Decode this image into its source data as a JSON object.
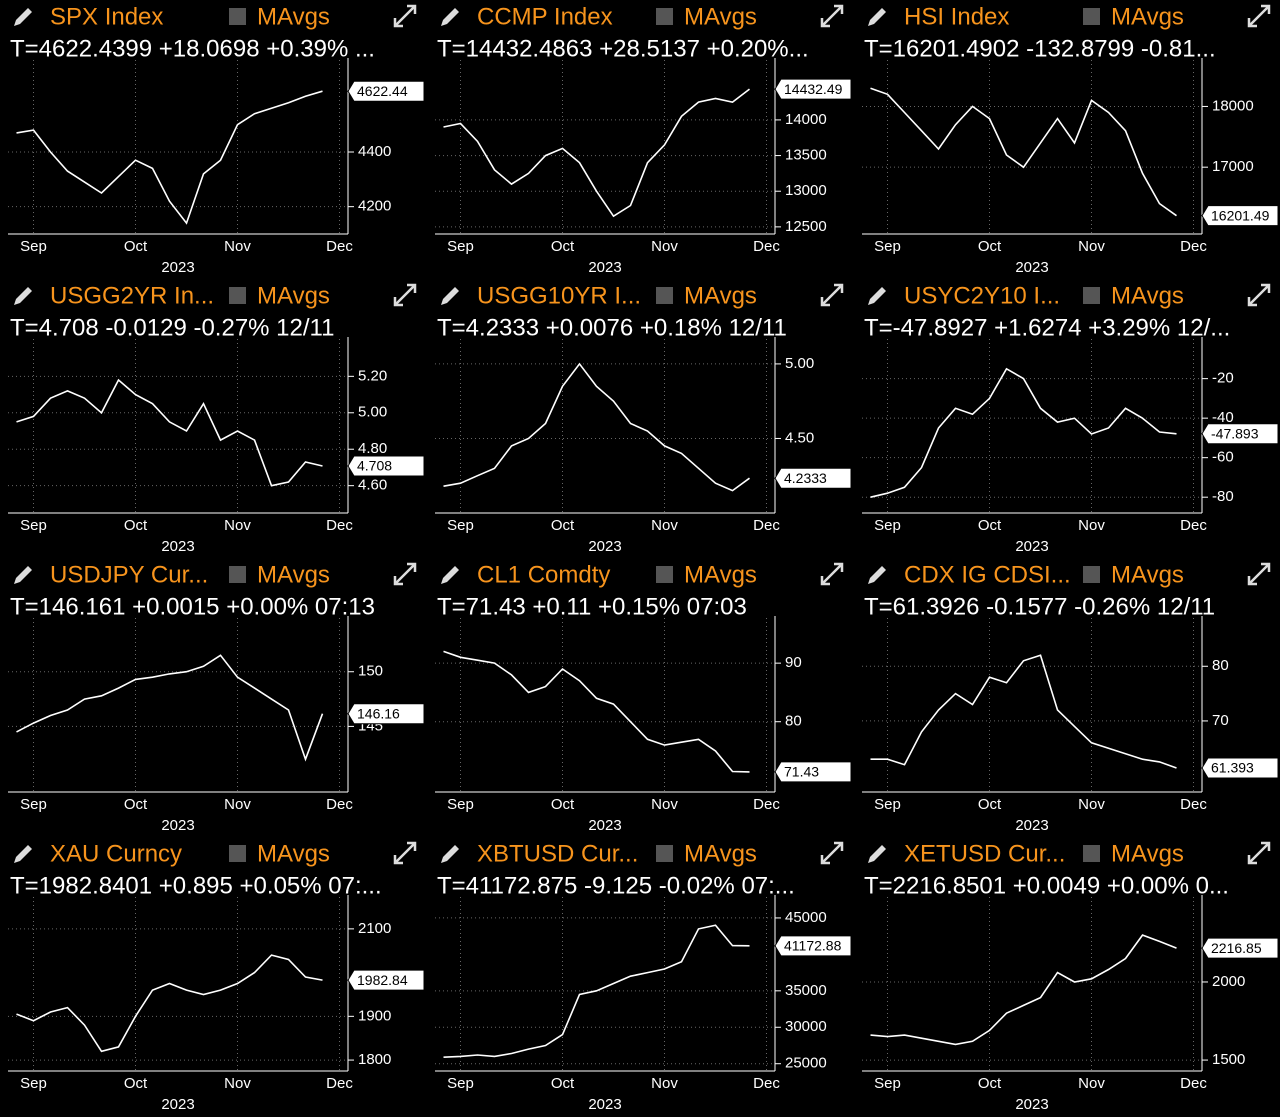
{
  "chart_data": [
    {
      "type": "line",
      "title": "SPX Index",
      "legend": "MAvgs",
      "quote": "T=4622.4399 +18.0698 +0.39% ...",
      "quote_color": "#3ee83e",
      "xlabel": "2023",
      "color": "#ffffff",
      "categories": [
        null,
        "Sep",
        null,
        null,
        null,
        null,
        null,
        "Oct",
        null,
        null,
        null,
        null,
        null,
        "Nov",
        null,
        null,
        null,
        null,
        null,
        "Dec"
      ],
      "values": [
        4470,
        4480,
        4400,
        4330,
        4290,
        4250,
        4310,
        4370,
        4340,
        4220,
        4140,
        4320,
        4370,
        4500,
        4540,
        4560,
        4580,
        4604,
        4622.4399,
        null
      ],
      "value_labels": [
        null,
        null,
        null,
        null,
        null,
        null,
        null,
        null,
        null,
        null,
        null,
        null,
        null,
        null,
        null,
        null,
        null,
        null,
        "4622.44",
        null
      ],
      "ylim": [
        4100,
        4700
      ],
      "yticks": [
        4200,
        4400
      ],
      "grid": true
    },
    {
      "type": "line",
      "title": "CCMP Index",
      "legend": "MAvgs",
      "quote": "T=14432.4863 +28.5137 +0.20%...",
      "quote_color": "#3ee83e",
      "xlabel": "2023",
      "color": "#ffffff",
      "categories": [
        null,
        "Sep",
        null,
        null,
        null,
        null,
        null,
        "Oct",
        null,
        null,
        null,
        null,
        null,
        "Nov",
        null,
        null,
        null,
        null,
        null,
        "Dec"
      ],
      "values": [
        13900,
        13950,
        13700,
        13300,
        13100,
        13250,
        13500,
        13600,
        13400,
        13000,
        12650,
        12800,
        13400,
        13650,
        14050,
        14250,
        14300,
        14250,
        14432.4863,
        null
      ],
      "value_labels": [
        null,
        null,
        null,
        null,
        null,
        null,
        null,
        null,
        null,
        null,
        null,
        null,
        null,
        null,
        null,
        null,
        null,
        null,
        "14432.49",
        null
      ],
      "ylim": [
        12400,
        14700
      ],
      "yticks": [
        12500,
        13000,
        13500,
        14000
      ],
      "grid": true
    },
    {
      "type": "line",
      "title": "HSI Index",
      "legend": "MAvgs",
      "quote": "T=16201.4902 -132.8799 -0.81...",
      "quote_color": "#ff3434",
      "xlabel": "2023",
      "color": "#ffffff",
      "categories": [
        null,
        "Sep",
        null,
        null,
        null,
        null,
        null,
        "Oct",
        null,
        null,
        null,
        null,
        null,
        "Nov",
        null,
        null,
        null,
        null,
        null,
        "Dec"
      ],
      "values": [
        18300,
        18200,
        17900,
        17600,
        17300,
        17700,
        18000,
        17800,
        17200,
        17000,
        17400,
        17800,
        17400,
        18100,
        17900,
        17600,
        16900,
        16400,
        16201.4902,
        null
      ],
      "value_labels": [
        null,
        null,
        null,
        null,
        null,
        null,
        null,
        null,
        null,
        null,
        null,
        null,
        null,
        null,
        null,
        null,
        null,
        null,
        "16201.49",
        null
      ],
      "ylim": [
        15900,
        18600
      ],
      "yticks": [
        17000,
        18000
      ],
      "grid": true
    },
    {
      "type": "line",
      "title": "USGG2YR In...",
      "legend": "MAvgs",
      "quote": "T=4.708 -0.0129 -0.27% 12/11",
      "quote_color": "#ff3434",
      "xlabel": "2023",
      "color": "#ffffff",
      "categories": [
        null,
        "Sep",
        null,
        null,
        null,
        null,
        null,
        "Oct",
        null,
        null,
        null,
        null,
        null,
        "Nov",
        null,
        null,
        null,
        null,
        null,
        "Dec"
      ],
      "values": [
        4.95,
        4.98,
        5.08,
        5.12,
        5.08,
        5.0,
        5.18,
        5.1,
        5.05,
        4.95,
        4.9,
        5.05,
        4.85,
        4.9,
        4.85,
        4.6,
        4.62,
        4.73,
        4.708,
        null
      ],
      "value_labels": [
        null,
        null,
        null,
        null,
        null,
        null,
        null,
        null,
        null,
        null,
        null,
        null,
        null,
        null,
        null,
        null,
        null,
        null,
        "4.708",
        null
      ],
      "ylim": [
        4.45,
        5.35
      ],
      "yticks": [
        {
          "value": 4.6,
          "label": "4.60"
        },
        {
          "value": 4.8,
          "label": "4.80"
        },
        {
          "value": 5,
          "label": "5.00"
        },
        {
          "value": 5.2,
          "label": "5.20"
        }
      ],
      "grid": true
    },
    {
      "type": "line",
      "title": "USGG10YR I...",
      "legend": "MAvgs",
      "quote": "T=4.2333 +0.0076 +0.18% 12/11",
      "quote_color": "#3ee83e",
      "xlabel": "2023",
      "color": "#ffffff",
      "categories": [
        null,
        "Sep",
        null,
        null,
        null,
        null,
        null,
        "Oct",
        null,
        null,
        null,
        null,
        null,
        "Nov",
        null,
        null,
        null,
        null,
        null,
        "Dec"
      ],
      "values": [
        4.18,
        4.2,
        4.25,
        4.3,
        4.45,
        4.5,
        4.6,
        4.85,
        5.0,
        4.85,
        4.75,
        4.6,
        4.55,
        4.45,
        4.4,
        4.3,
        4.2,
        4.15,
        4.2333,
        null
      ],
      "value_labels": [
        null,
        null,
        null,
        null,
        null,
        null,
        null,
        null,
        null,
        null,
        null,
        null,
        null,
        null,
        null,
        null,
        null,
        null,
        "4.2333",
        null
      ],
      "ylim": [
        4.0,
        5.1
      ],
      "yticks": [
        {
          "value": 4.5,
          "label": "4.50"
        },
        {
          "value": 5,
          "label": "5.00"
        }
      ],
      "grid": true
    },
    {
      "type": "line",
      "title": "USYC2Y10 I...",
      "legend": "MAvgs",
      "quote": "T=-47.8927 +1.6274 +3.29% 12/...",
      "quote_color": "#3ee83e",
      "xlabel": "2023",
      "color": "#ffffff",
      "categories": [
        null,
        "Sep",
        null,
        null,
        null,
        null,
        null,
        "Oct",
        null,
        null,
        null,
        null,
        null,
        "Nov",
        null,
        null,
        null,
        null,
        null,
        "Dec"
      ],
      "values": [
        -80,
        -78,
        -75,
        -65,
        -45,
        -35,
        -38,
        -30,
        -15,
        -20,
        -35,
        -42,
        -40,
        -48,
        -45,
        -35,
        -40,
        -47,
        -47.8927,
        null
      ],
      "value_labels": [
        null,
        null,
        null,
        null,
        null,
        null,
        null,
        null,
        null,
        null,
        null,
        null,
        null,
        null,
        null,
        null,
        null,
        null,
        "-47.893",
        null
      ],
      "ylim": [
        -88,
        -5
      ],
      "yticks": [
        -80,
        -60,
        -40,
        -20
      ],
      "grid": true
    },
    {
      "type": "line",
      "title": "USDJPY Cur...",
      "legend": "MAvgs",
      "quote": "T=146.161 +0.0015 +0.00% 07:13",
      "quote_color": "#3ee83e",
      "xlabel": "2023",
      "color": "#ffffff",
      "categories": [
        null,
        "Sep",
        null,
        null,
        null,
        null,
        null,
        "Oct",
        null,
        null,
        null,
        null,
        null,
        "Nov",
        null,
        null,
        null,
        null,
        null,
        "Dec"
      ],
      "values": [
        144.5,
        145.3,
        146,
        146.5,
        147.5,
        147.8,
        148.5,
        149.3,
        149.5,
        149.8,
        150,
        150.5,
        151.5,
        149.5,
        148.5,
        147.5,
        146.5,
        142,
        146.161,
        null
      ],
      "value_labels": [
        null,
        null,
        null,
        null,
        null,
        null,
        null,
        null,
        null,
        null,
        null,
        null,
        null,
        null,
        null,
        null,
        null,
        null,
        "146.16",
        null
      ],
      "ylim": [
        139,
        154
      ],
      "yticks": [
        145,
        150
      ],
      "grid": true
    },
    {
      "type": "line",
      "title": "CL1 Comdty",
      "legend": "MAvgs",
      "quote": "T=71.43 +0.11 +0.15% 07:03",
      "quote_color": "#3ee83e",
      "xlabel": "2023",
      "color": "#ffffff",
      "categories": [
        null,
        "Sep",
        null,
        null,
        null,
        null,
        null,
        "Oct",
        null,
        null,
        null,
        null,
        null,
        "Nov",
        null,
        null,
        null,
        null,
        null,
        "Dec"
      ],
      "values": [
        92,
        91,
        90.5,
        90,
        88,
        85,
        86,
        89,
        87,
        84,
        83,
        80,
        77,
        76,
        76.5,
        77,
        75,
        71.5,
        71.43,
        null
      ],
      "value_labels": [
        null,
        null,
        null,
        null,
        null,
        null,
        null,
        null,
        null,
        null,
        null,
        null,
        null,
        null,
        null,
        null,
        null,
        null,
        "71.43",
        null
      ],
      "ylim": [
        68,
        96
      ],
      "yticks": [
        80,
        90
      ],
      "grid": true
    },
    {
      "type": "line",
      "title": "CDX IG CDSI...",
      "legend": "MAvgs",
      "quote": "T=61.3926 -0.1577 -0.26% 12/11",
      "quote_color": "#3ee83e",
      "xlabel": "2023",
      "color": "#ffffff",
      "categories": [
        null,
        "Sep",
        null,
        null,
        null,
        null,
        null,
        "Oct",
        null,
        null,
        null,
        null,
        null,
        "Nov",
        null,
        null,
        null,
        null,
        null,
        "Dec"
      ],
      "values": [
        63,
        63,
        62,
        68,
        72,
        75,
        73,
        78,
        77,
        81,
        82,
        72,
        69,
        66,
        65,
        64,
        63,
        62.5,
        61.3926,
        null
      ],
      "value_labels": [
        null,
        null,
        null,
        null,
        null,
        null,
        null,
        null,
        null,
        null,
        null,
        null,
        null,
        null,
        null,
        null,
        null,
        null,
        "61.393",
        null
      ],
      "ylim": [
        57,
        87
      ],
      "yticks": [
        70,
        80
      ],
      "grid": true
    },
    {
      "type": "line",
      "title": "XAU Curncy",
      "legend": "MAvgs",
      "quote": "T=1982.8401 +0.895 +0.05% 07:...",
      "quote_color": "#3ee83e",
      "xlabel": "2023",
      "color": "#ffffff",
      "categories": [
        null,
        "Sep",
        null,
        null,
        null,
        null,
        null,
        "Oct",
        null,
        null,
        null,
        null,
        null,
        "Nov",
        null,
        null,
        null,
        null,
        null,
        "Dec"
      ],
      "values": [
        1905,
        1890,
        1910,
        1920,
        1880,
        1820,
        1830,
        1900,
        1960,
        1975,
        1960,
        1950,
        1960,
        1975,
        2000,
        2040,
        2030,
        1990,
        1982.8401,
        null
      ],
      "value_labels": [
        null,
        null,
        null,
        null,
        null,
        null,
        null,
        null,
        null,
        null,
        null,
        null,
        null,
        null,
        null,
        null,
        null,
        null,
        "1982.84",
        null
      ],
      "ylim": [
        1775,
        2150
      ],
      "yticks": [
        1800,
        1900,
        2100
      ],
      "grid": true
    },
    {
      "type": "line",
      "title": "XBTUSD Cur...",
      "legend": "MAvgs",
      "quote": "T=41172.875 -9.125 -0.02% 07:...",
      "quote_color": "#ff3434",
      "xlabel": "2023",
      "color": "#ffffff",
      "categories": [
        null,
        "Sep",
        null,
        null,
        null,
        null,
        null,
        "Oct",
        null,
        null,
        null,
        null,
        null,
        "Nov",
        null,
        null,
        null,
        null,
        null,
        "Dec"
      ],
      "values": [
        25900,
        26000,
        26200,
        26000,
        26400,
        27000,
        27500,
        29000,
        34500,
        35000,
        36000,
        37000,
        37500,
        38000,
        39000,
        43500,
        44000,
        41200,
        41172.875,
        null
      ],
      "value_labels": [
        null,
        null,
        null,
        null,
        null,
        null,
        null,
        null,
        null,
        null,
        null,
        null,
        null,
        null,
        null,
        null,
        null,
        null,
        "41172.88",
        null
      ],
      "ylim": [
        24000,
        46500
      ],
      "yticks": [
        25000,
        30000,
        35000,
        45000
      ],
      "grid": true
    },
    {
      "type": "line",
      "title": "XETUSD Cur...",
      "legend": "MAvgs",
      "quote": "T=2216.8501 +0.0049 +0.00% 0...",
      "quote_color": "#3ee83e",
      "xlabel": "2023",
      "color": "#ffffff",
      "categories": [
        null,
        "Sep",
        null,
        null,
        null,
        null,
        null,
        "Oct",
        null,
        null,
        null,
        null,
        null,
        "Nov",
        null,
        null,
        null,
        null,
        null,
        "Dec"
      ],
      "values": [
        1660,
        1650,
        1660,
        1640,
        1620,
        1600,
        1620,
        1690,
        1800,
        1850,
        1900,
        2060,
        2000,
        2020,
        2080,
        2150,
        2300,
        2260,
        2216.8501,
        null
      ],
      "value_labels": [
        null,
        null,
        null,
        null,
        null,
        null,
        null,
        null,
        null,
        null,
        null,
        null,
        null,
        null,
        null,
        null,
        null,
        null,
        "2216.85",
        null
      ],
      "ylim": [
        1430,
        2480
      ],
      "yticks": [
        1500,
        2000
      ],
      "grid": true
    }
  ]
}
